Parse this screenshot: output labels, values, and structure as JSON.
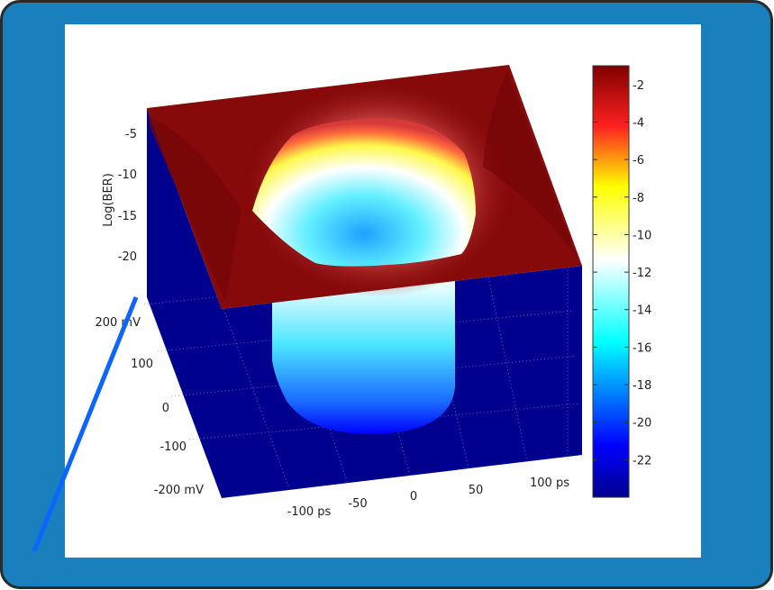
{
  "chart_data": {
    "type": "surface",
    "zlabel": "Log(BER)",
    "x_ticks": [
      "-100 ps",
      "-50",
      "0",
      "50",
      "100 ps"
    ],
    "y_ticks": [
      "-200 mV",
      "-100",
      "0",
      "100",
      "200 mV"
    ],
    "z_ticks": [
      "-5",
      "-10",
      "-15",
      "-20"
    ],
    "zlim": [
      -24,
      -1
    ],
    "colorbar": {
      "colormap": "jet",
      "range": [
        -24,
        -1
      ],
      "ticks": [
        "-2",
        "-4",
        "-6",
        "-8",
        "-10",
        "-12",
        "-14",
        "-16",
        "-18",
        "-20",
        "-22"
      ]
    },
    "surface_description_values": {
      "plateau_value": -1,
      "eye_floor_value": -23
    }
  },
  "colors": {
    "frame": "#1a7fbd",
    "plateau": "#870a0a",
    "side_wall": "#00008f",
    "annotation_line": "#0a66ff"
  }
}
